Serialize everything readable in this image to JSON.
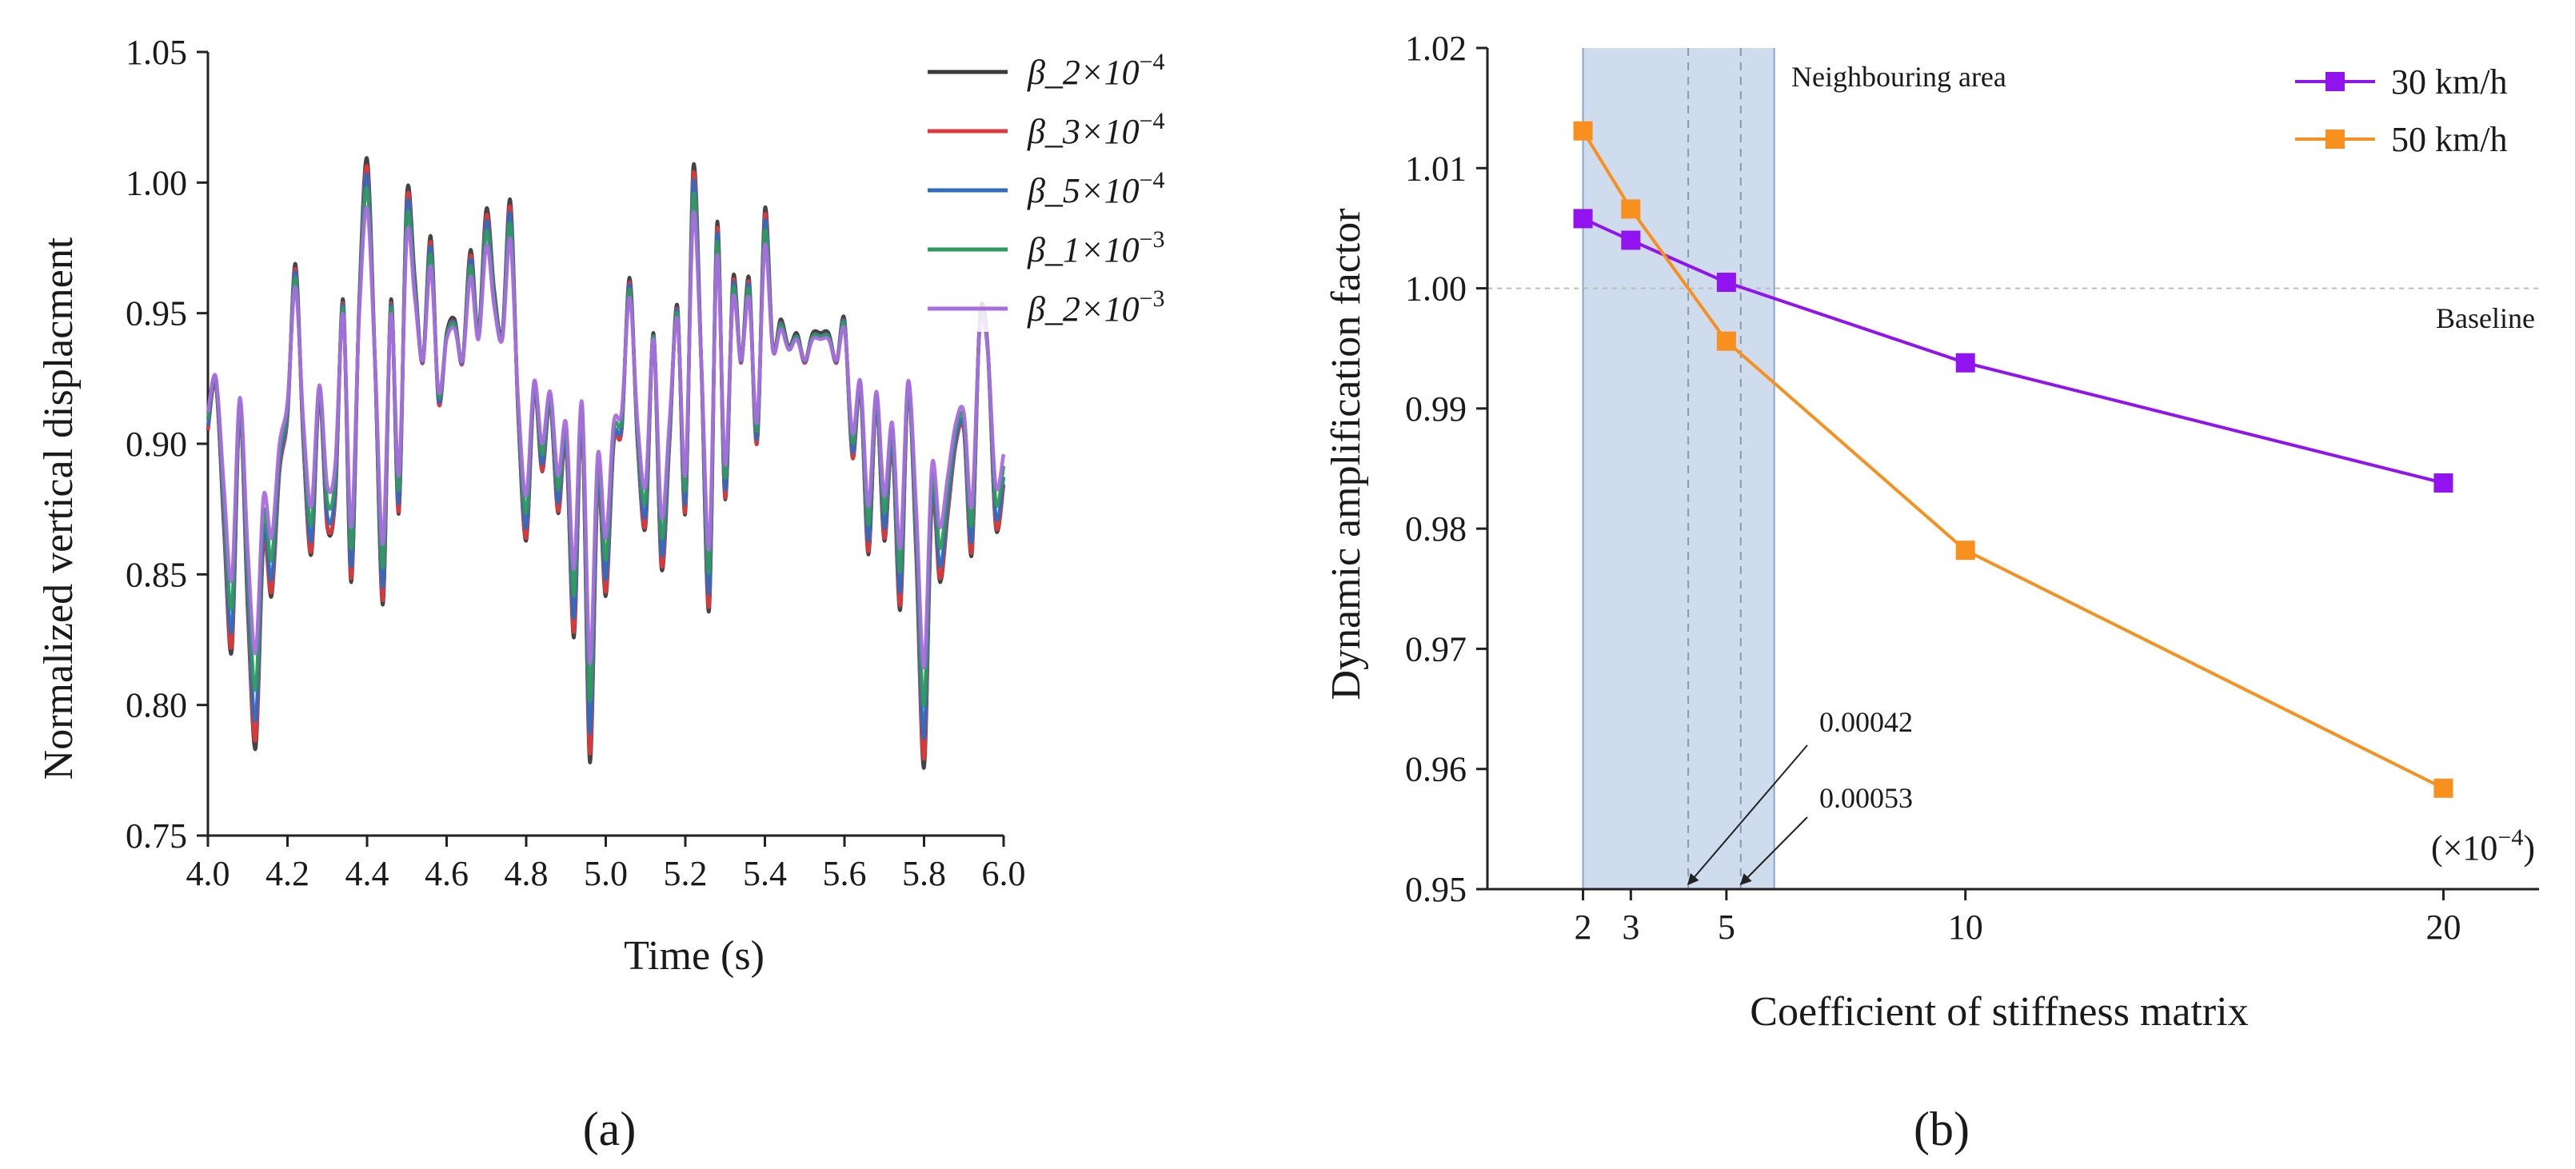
{
  "chart_data": [
    {
      "type": "line",
      "panel_label": "(a)",
      "xlabel": "Time (s)",
      "ylabel": "Normalized vertical displacment",
      "xlim": [
        4.0,
        6.0
      ],
      "ylim": [
        0.75,
        1.05
      ],
      "x_ticks": [
        "4.0",
        "4.2",
        "4.4",
        "4.6",
        "4.8",
        "5.0",
        "5.2",
        "5.4",
        "5.6",
        "5.8",
        "6.0"
      ],
      "y_ticks": [
        "0.75",
        "0.80",
        "0.85",
        "0.90",
        "0.95",
        "1.00",
        "1.05"
      ],
      "legend_position": "top-right",
      "series": [
        {
          "name": "β_2×10",
          "exp": "−4",
          "color": "#3a3a3a",
          "amp_scale": 1.06,
          "offset": 0.0
        },
        {
          "name": "β_3×10",
          "exp": "−4",
          "color": "#e0393b",
          "amp_scale": 1.03,
          "offset": 0.0
        },
        {
          "name": "β_5×10",
          "exp": "−4",
          "color": "#2e6cc2",
          "amp_scale": 0.98,
          "offset": 0.002
        },
        {
          "name": "β_1×10",
          "exp": "−3",
          "color": "#2e9a5d",
          "amp_scale": 0.9,
          "offset": 0.005
        },
        {
          "name": "β_2×10",
          "exp": "−3",
          "color": "#a96be0",
          "amp_scale": 0.8,
          "offset": 0.008
        }
      ],
      "reference_curve": {
        "x": [
          4.0,
          4.02,
          4.04,
          4.06,
          4.08,
          4.1,
          4.12,
          4.14,
          4.16,
          4.18,
          4.2,
          4.22,
          4.24,
          4.26,
          4.28,
          4.3,
          4.32,
          4.34,
          4.36,
          4.38,
          4.4,
          4.42,
          4.44,
          4.46,
          4.48,
          4.5,
          4.52,
          4.54,
          4.56,
          4.58,
          4.6,
          4.62,
          4.64,
          4.66,
          4.68,
          4.7,
          4.72,
          4.74,
          4.76,
          4.78,
          4.8,
          4.82,
          4.84,
          4.86,
          4.88,
          4.9,
          4.92,
          4.94,
          4.96,
          4.98,
          5.0,
          5.02,
          5.04,
          5.06,
          5.08,
          5.1,
          5.12,
          5.14,
          5.16,
          5.18,
          5.2,
          5.22,
          5.24,
          5.26,
          5.28,
          5.3,
          5.32,
          5.34,
          5.36,
          5.38,
          5.4,
          5.42,
          5.44,
          5.46,
          5.48,
          5.5,
          5.52,
          5.54,
          5.56,
          5.58,
          5.6,
          5.62,
          5.64,
          5.66,
          5.68,
          5.7,
          5.72,
          5.74,
          5.76,
          5.78,
          5.8,
          5.82,
          5.84,
          5.86,
          5.88,
          5.9,
          5.92,
          5.94,
          5.96,
          5.98,
          6.0
        ],
        "y": [
          0.905,
          0.922,
          0.87,
          0.825,
          0.912,
          0.84,
          0.79,
          0.865,
          0.845,
          0.89,
          0.91,
          0.965,
          0.9,
          0.86,
          0.918,
          0.87,
          0.88,
          0.952,
          0.85,
          0.95,
          1.003,
          0.93,
          0.842,
          0.952,
          0.875,
          0.99,
          0.96,
          0.93,
          0.975,
          0.915,
          0.94,
          0.945,
          0.93,
          0.97,
          0.94,
          0.985,
          0.955,
          0.94,
          0.988,
          0.91,
          0.865,
          0.92,
          0.89,
          0.915,
          0.875,
          0.9,
          0.83,
          0.91,
          0.785,
          0.885,
          0.845,
          0.9,
          0.905,
          0.96,
          0.9,
          0.87,
          0.94,
          0.855,
          0.9,
          0.95,
          0.875,
          1.0,
          0.93,
          0.84,
          0.98,
          0.88,
          0.96,
          0.93,
          0.96,
          0.9,
          0.985,
          0.935,
          0.945,
          0.935,
          0.94,
          0.93,
          0.94,
          0.94,
          0.94,
          0.93,
          0.945,
          0.895,
          0.92,
          0.86,
          0.915,
          0.865,
          0.9,
          0.84,
          0.92,
          0.86,
          0.783,
          0.88,
          0.85,
          0.875,
          0.9,
          0.905,
          0.86,
          0.945,
          0.935,
          0.87,
          0.885
        ]
      }
    },
    {
      "type": "line",
      "panel_label": "(b)",
      "xlabel": "Coefficient of stiffness matrix",
      "ylabel": "Dynamic amplification factor",
      "x_unit_label": "(×10",
      "x_unit_exp": "−4",
      "x_unit_close": ")",
      "xlim": [
        0,
        22
      ],
      "ylim": [
        0.95,
        1.02
      ],
      "x_ticks": [
        2,
        3,
        5,
        10,
        20
      ],
      "y_ticks": [
        "0.95",
        "0.96",
        "0.97",
        "0.98",
        "0.99",
        "1.00",
        "1.01",
        "1.02"
      ],
      "legend_position": "top-right",
      "series": [
        {
          "name": "30 km/h",
          "color": "#9013f0",
          "x": [
            2,
            3,
            5,
            10,
            20
          ],
          "y": [
            1.0058,
            1.004,
            1.0005,
            0.9938,
            0.9838
          ]
        },
        {
          "name": "50 km/h",
          "color": "#f7901e",
          "x": [
            2,
            3,
            5,
            10,
            20
          ],
          "y": [
            1.0131,
            1.0066,
            0.9956,
            0.9782,
            0.9584
          ]
        }
      ],
      "shaded_region": {
        "x_from": 2,
        "x_to": 6,
        "label": "Neighbouring area",
        "color": "#c5d6ea"
      },
      "dashed_markers": [
        {
          "x": 4.2,
          "label": "0.00042"
        },
        {
          "x": 5.3,
          "label": "0.00053"
        }
      ],
      "baseline": {
        "y": 1.0,
        "label": "Baseline"
      }
    }
  ]
}
